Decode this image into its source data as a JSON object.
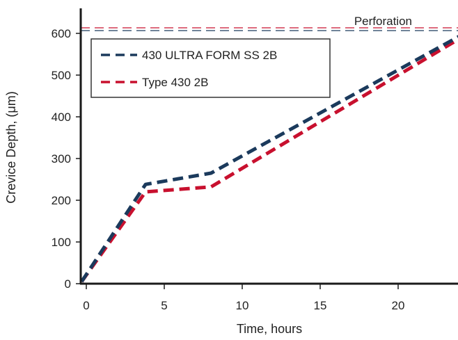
{
  "chart_data": {
    "type": "line",
    "title": "",
    "xlabel": "Time, hours",
    "ylabel": "Crevice Depth, (μm)",
    "xlim": [
      -0.3,
      24.7
    ],
    "ylim": [
      0,
      600
    ],
    "xticks": [
      0,
      5,
      10,
      15,
      20
    ],
    "yticks": [
      0,
      100,
      200,
      300,
      400,
      500,
      600
    ],
    "grid": false,
    "legend_position": "top-left",
    "series": [
      {
        "name": "430 ULTRA FORM SS 2B",
        "color": "#1b3a5c",
        "x": [
          -0.3,
          3.8,
          8,
          24.5
        ],
        "y": [
          5,
          238,
          265,
          605
        ]
      },
      {
        "name": "Type 430 2B",
        "color": "#c8102e",
        "x": [
          -0.3,
          3.8,
          8,
          24.5
        ],
        "y": [
          5,
          220,
          232,
          600
        ]
      }
    ],
    "reference_line": {
      "label": "Perforation",
      "y": 610
    }
  }
}
